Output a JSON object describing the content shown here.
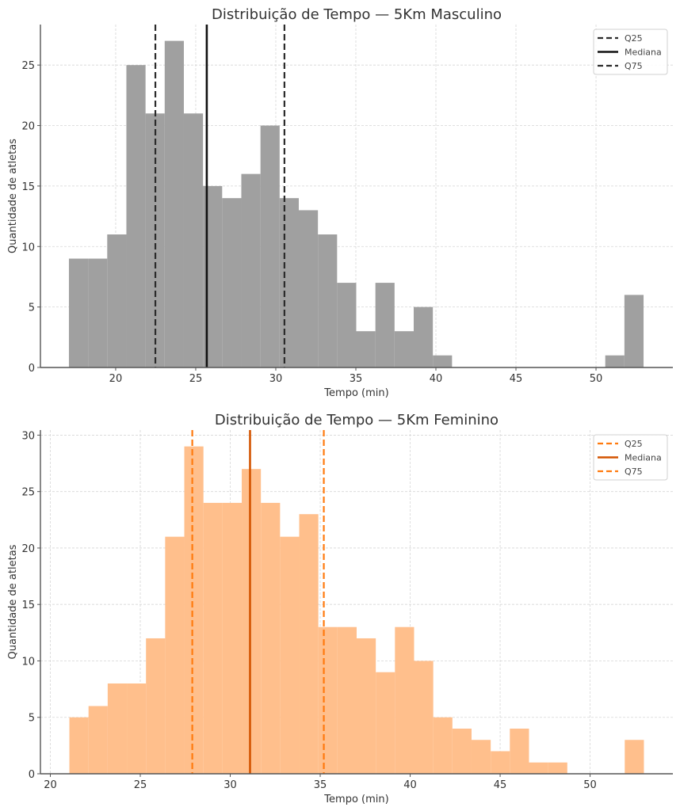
{
  "chart_data": [
    {
      "type": "histogram",
      "title": "Distribuição de Tempo — 5Km Masculino",
      "xlabel": "Tempo (min)",
      "ylabel": "Quantidade de atletas",
      "xlim": [
        15.3,
        54.8
      ],
      "ylim": [
        0,
        28.35
      ],
      "xticks": [
        20,
        25,
        30,
        35,
        40,
        45,
        50
      ],
      "yticks": [
        0,
        5,
        10,
        15,
        20,
        25
      ],
      "grid": true,
      "bin_start": 17.08,
      "bin_end": 52.97,
      "counts": [
        9,
        9,
        11,
        25,
        21,
        27,
        21,
        15,
        14,
        16,
        20,
        14,
        13,
        11,
        7,
        3,
        7,
        3,
        5,
        1,
        0,
        0,
        0,
        0,
        0,
        0,
        0,
        0,
        1,
        6
      ],
      "bar_color": "#a0a0a0",
      "lines": [
        {
          "name": "Q25",
          "value": 22.48,
          "style": "dashed",
          "color": "#2b2b2b"
        },
        {
          "name": "Mediana",
          "value": 25.69,
          "style": "solid",
          "color": "#111111"
        },
        {
          "name": "Q75",
          "value": 30.54,
          "style": "dashed",
          "color": "#2b2b2b"
        }
      ],
      "legend_position": "top-right"
    },
    {
      "type": "histogram",
      "title": "Distribuição de Tempo — 5Km Feminino",
      "xlabel": "Tempo (min)",
      "ylabel": "Quantidade de atletas",
      "xlim": [
        19.45,
        54.6
      ],
      "ylim": [
        0,
        30.45
      ],
      "xticks": [
        20,
        25,
        30,
        35,
        40,
        45,
        50
      ],
      "yticks": [
        0,
        5,
        10,
        15,
        20,
        25,
        30
      ],
      "grid": true,
      "bin_start": 21.06,
      "bin_end": 52.99,
      "counts": [
        5,
        6,
        8,
        8,
        12,
        21,
        29,
        24,
        24,
        27,
        24,
        21,
        23,
        13,
        13,
        12,
        9,
        13,
        10,
        5,
        4,
        3,
        2,
        4,
        1,
        1,
        0,
        0,
        0,
        3
      ],
      "bar_color": "#ffbf8c",
      "lines": [
        {
          "name": "Q25",
          "value": 27.89,
          "style": "dashed",
          "color": "#ff7a0e"
        },
        {
          "name": "Mediana",
          "value": 31.1,
          "style": "solid",
          "color": "#d35400"
        },
        {
          "name": "Q75",
          "value": 35.2,
          "style": "dashed",
          "color": "#ff7a0e"
        }
      ],
      "legend_position": "top-right"
    }
  ]
}
